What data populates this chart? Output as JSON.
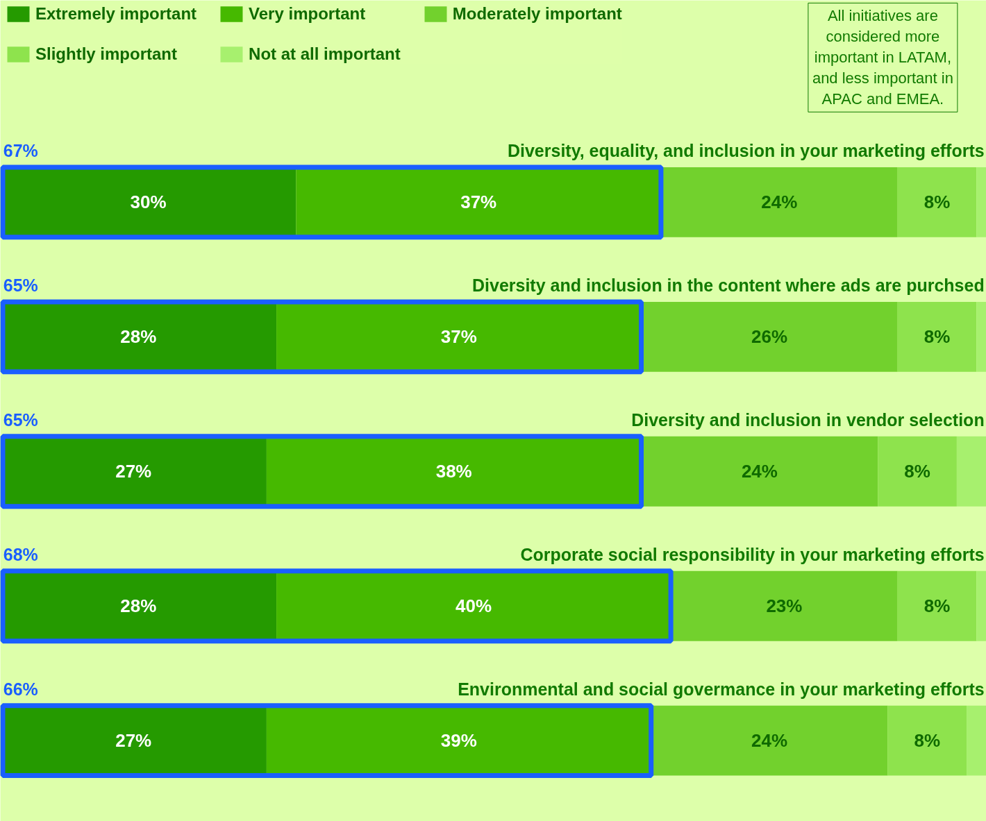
{
  "chart_data": {
    "type": "bar",
    "orientation": "horizontal",
    "stacked": true,
    "categories": [
      "Diversity, equality, and inclusion in your marketing efforts",
      "Diversity and inclusion in the content where ads are purchsed",
      "Diversity and inclusion in vendor selection",
      "Corporate social responsibility in your marketing efforts",
      "Environmental and social govermance in your marketing efforts"
    ],
    "series": [
      {
        "name": "Extremely important",
        "color": "#259a00",
        "values": [
          30,
          28,
          27,
          28,
          27
        ],
        "value_labels": [
          "30%",
          "28%",
          "27%",
          "28%",
          "27%"
        ]
      },
      {
        "name": "Very important",
        "color": "#46b900",
        "values": [
          37,
          37,
          38,
          40,
          39
        ],
        "value_labels": [
          "37%",
          "37%",
          "38%",
          "40%",
          "39%"
        ]
      },
      {
        "name": "Moderately important",
        "color": "#72d12d",
        "values": [
          24,
          26,
          24,
          23,
          24
        ],
        "value_labels": [
          "24%",
          "26%",
          "24%",
          "23%",
          "24%"
        ]
      },
      {
        "name": "Slightly important",
        "color": "#8ee34d",
        "values": [
          8,
          8,
          8,
          8,
          8
        ],
        "value_labels": [
          "8%",
          "8%",
          "8%",
          "8%",
          "8%"
        ]
      },
      {
        "name": "Not at all important",
        "color": "#a7f06e",
        "values": [
          1,
          1,
          3,
          1,
          2
        ],
        "value_labels": [
          null,
          null,
          null,
          null,
          null
        ]
      }
    ],
    "xlim": [
      0,
      100
    ],
    "tick_labels": false,
    "grid": false,
    "legend": "top left",
    "annotations": [
      "All initiatives are considered more important in LATAM, and less important in APAC and EMEA.",
      "67%",
      "65%",
      "65%",
      "68%",
      "66%"
    ]
  }
}
